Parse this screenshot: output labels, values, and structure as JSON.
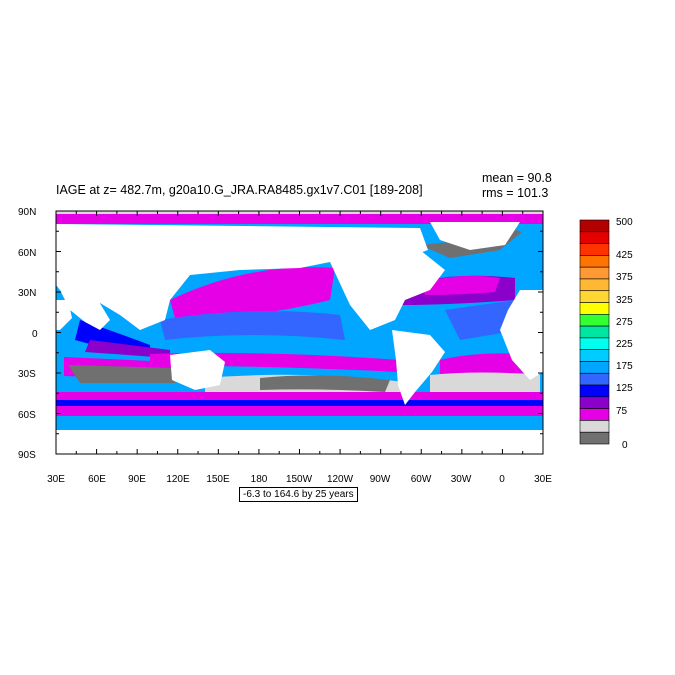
{
  "plot": {
    "title": "IAGE at z= 482.7m, g20a10.G_JRA.RA8485.gx1v7.C01 [189-208]",
    "mean_text": "mean = 90.8",
    "rms_text": "rms = 101.3",
    "range_text": "-6.3 to 164.6 by 25 years"
  },
  "lat_labels": [
    "90N",
    "60N",
    "30N",
    "0",
    "30S",
    "60S",
    "90S"
  ],
  "lon_labels": [
    "30E",
    "60E",
    "90E",
    "120E",
    "150E",
    "180",
    "150W",
    "120W",
    "90W",
    "60W",
    "30W",
    "0",
    "30E"
  ],
  "colorbar": {
    "labels": [
      "500",
      "425",
      "375",
      "325",
      "275",
      "225",
      "175",
      "125",
      "75",
      "0"
    ],
    "colors": [
      "#b30000",
      "#e60000",
      "#ff3300",
      "#ff7300",
      "#ff9933",
      "#ffb833",
      "#ffd633",
      "#ffff00",
      "#33ff33",
      "#00e6a0",
      "#00ffee",
      "#00ccff",
      "#00a6ff",
      "#3366ff",
      "#0000ff",
      "#8c00cc",
      "#e600e6",
      "#d9d9d9",
      "#707070"
    ]
  },
  "colors": {
    "land": "#ffffff",
    "frame": "#000000"
  }
}
